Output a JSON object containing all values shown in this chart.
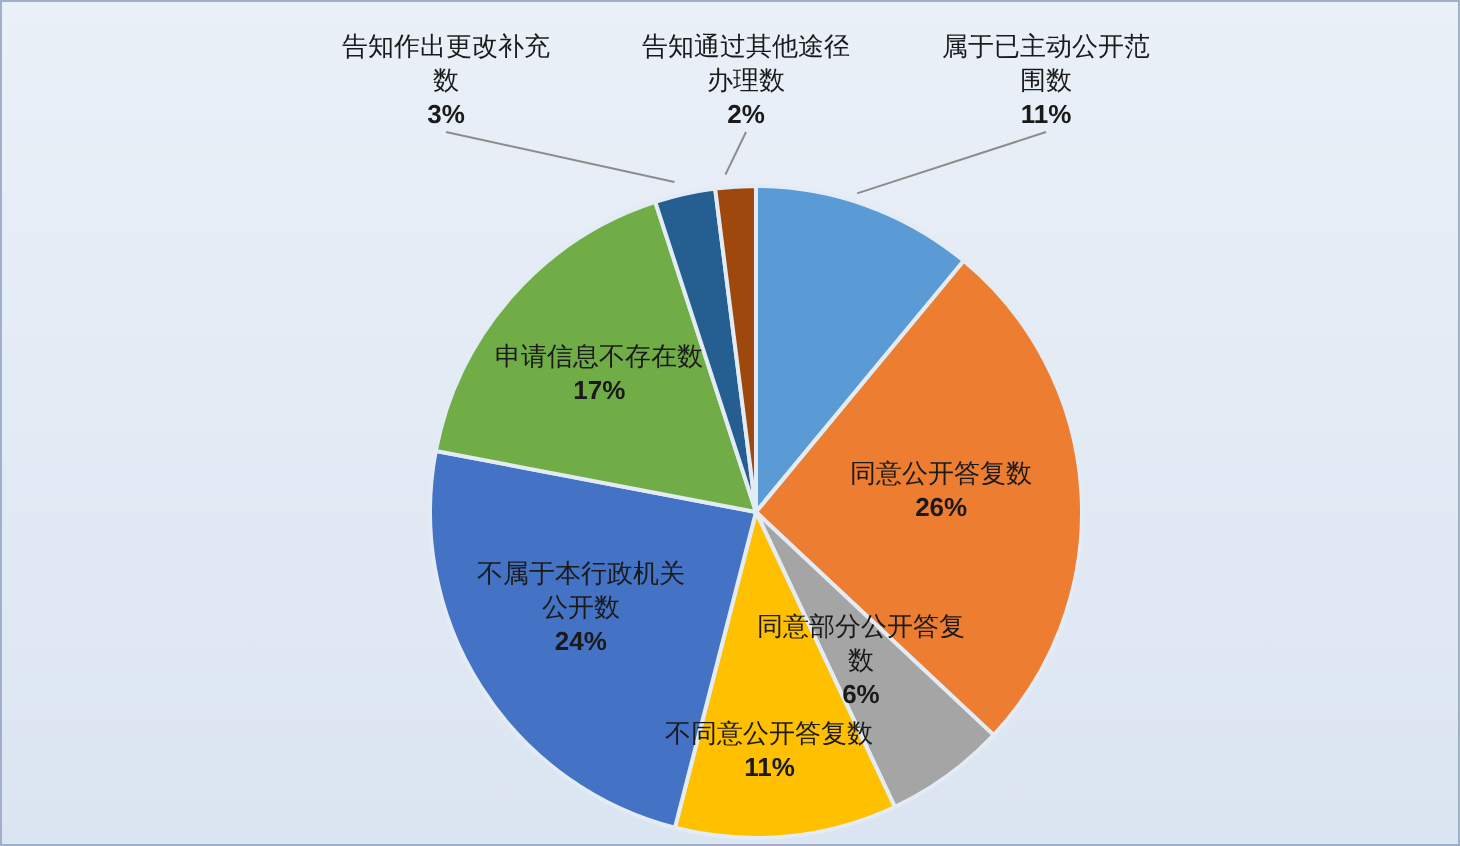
{
  "chart_data": {
    "type": "pie",
    "categories": [
      "属于已主动公开范围数",
      "同意公开答复数",
      "同意部分公开答复数",
      "不同意公开答复数",
      "不属于本行政机关公开数",
      "申请信息不存在数",
      "告知作出更改补充数",
      "告知通过其他途径办理数"
    ],
    "values": [
      11,
      26,
      6,
      11,
      24,
      17,
      3,
      2
    ],
    "value_labels": [
      "11%",
      "26%",
      "6%",
      "11%",
      "24%",
      "17%",
      "3%",
      "2%"
    ],
    "colors": [
      "#5b9bd5",
      "#ed7d31",
      "#a5a5a5",
      "#ffc000",
      "#4472c4",
      "#70ad47",
      "#255e91",
      "#9e480e"
    ]
  }
}
